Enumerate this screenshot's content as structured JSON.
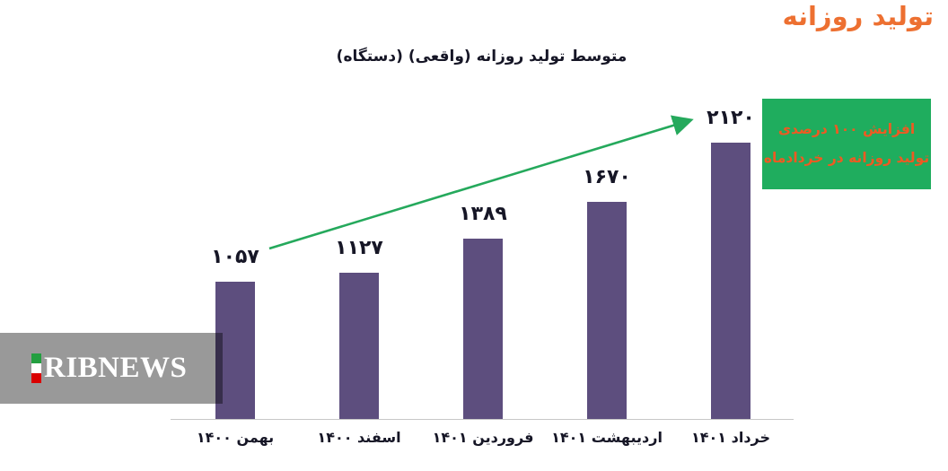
{
  "chart_data": {
    "type": "bar",
    "title": "تولید روزانه",
    "subtitle": "متوسط تولید روزانه (واقعی) (دستگاه)",
    "categories": [
      "بهمن ۱۴۰۰",
      "اسفند ۱۴۰۰",
      "فروردین ۱۴۰۱",
      "اردیبهشت ۱۴۰۱",
      "خرداد ۱۴۰۱"
    ],
    "values": [
      1057,
      1127,
      1389,
      1670,
      2120
    ],
    "value_labels": [
      "۱۰۵۷",
      "۱۱۲۷",
      "۱۳۸۹",
      "۱۶۷۰",
      "۲۱۲۰"
    ],
    "xlabel": "",
    "ylabel": "",
    "ylim": [
      0,
      2300
    ],
    "grid": false,
    "legend": false,
    "bar_color": "#5d4e7e"
  },
  "annotation": {
    "line1": "افزایش ۱۰۰ درصدی",
    "line2": "تولید روزانه در خردادماه"
  },
  "trend_arrow": {
    "description": "green arrow rising from first bar value label to last bar value label"
  },
  "watermark": {
    "text": "RIBNEWS",
    "flag_colors": [
      "#239f40",
      "#ffffff",
      "#da0000"
    ]
  },
  "colors": {
    "title": "#ed7031",
    "bar": "#5d4e7e",
    "arrow": "#25a95c",
    "annotation_bg": "#1fad5e",
    "annotation_text": "#ee5a22",
    "label_text": "#161626",
    "axis_line": "#c8c8c8"
  }
}
